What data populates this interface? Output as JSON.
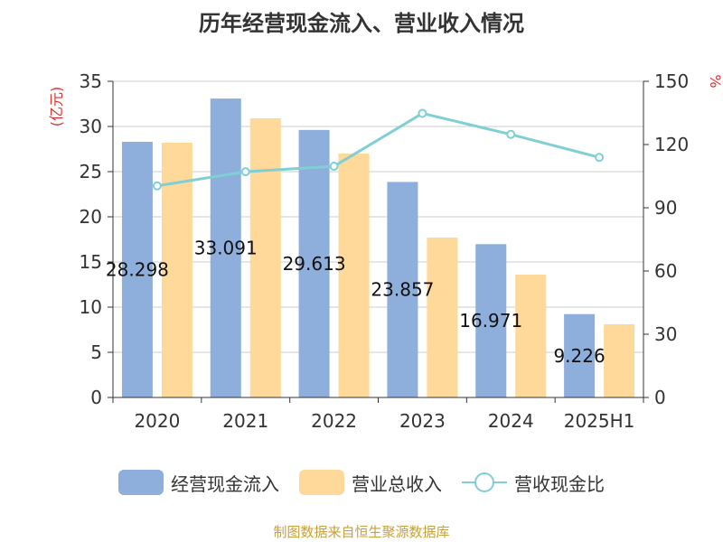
{
  "chart_data": {
    "type": "bar",
    "title": "历年经营现金流入、营业收入情况",
    "categories": [
      "2020",
      "2021",
      "2022",
      "2023",
      "2024",
      "2025H1"
    ],
    "ylabel_left": "(亿元)",
    "ylabel_right": "%",
    "ylim_left": [
      0,
      35
    ],
    "yticks_left": [
      0,
      5,
      10,
      15,
      20,
      25,
      30,
      35
    ],
    "ylim_right": [
      0,
      150
    ],
    "yticks_right": [
      0,
      30,
      60,
      90,
      120,
      150
    ],
    "grid": true,
    "legend_position": "bottom",
    "series": [
      {
        "name": "经营现金流入",
        "kind": "bar",
        "axis": "left",
        "color": "#8eaedb",
        "values": [
          28.298,
          33.091,
          29.613,
          23.857,
          16.971,
          9.226
        ],
        "data_labels": [
          "28.298",
          "33.091",
          "29.613",
          "23.857",
          "16.971",
          "9.226"
        ]
      },
      {
        "name": "营业总收入",
        "kind": "bar",
        "axis": "left",
        "color": "#fed99a",
        "values": [
          28.2,
          30.9,
          27.0,
          17.7,
          13.6,
          8.1
        ]
      },
      {
        "name": "营收现金比",
        "kind": "line",
        "axis": "right",
        "color": "#7fcfd5",
        "values": [
          100.4,
          107.1,
          109.7,
          134.8,
          124.8,
          113.9
        ]
      }
    ]
  },
  "source_note": "制图数据来自恒生聚源数据库"
}
